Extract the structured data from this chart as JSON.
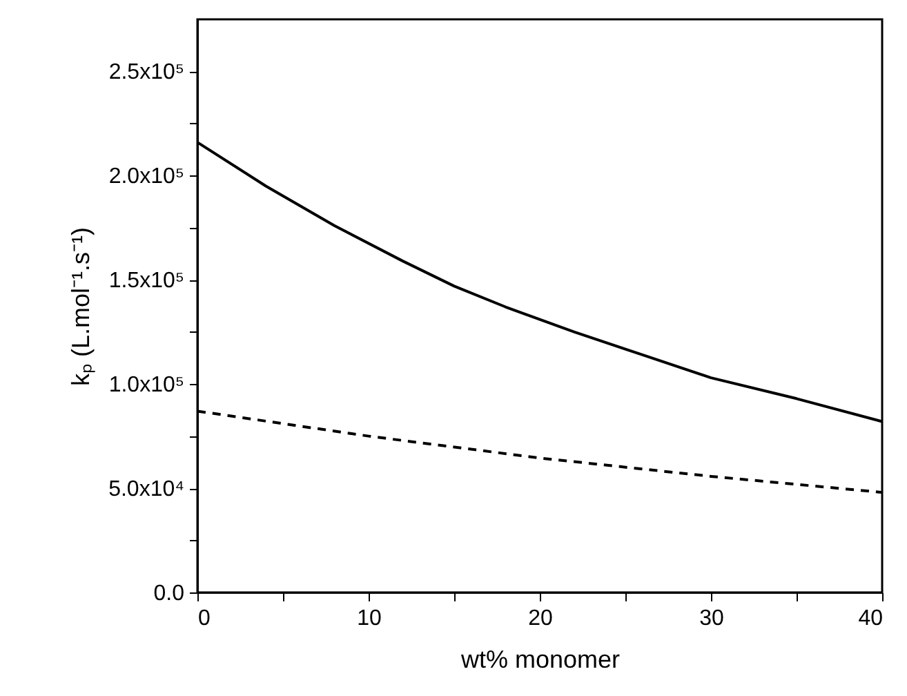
{
  "chart_data": {
    "type": "line",
    "xlabel": "wt% monomer",
    "ylabel": "kₚ (L.mol⁻¹.s⁻¹)",
    "xlim": [
      0,
      40
    ],
    "xticks": [
      0,
      {
        "value": 5,
        "label": null
      },
      10,
      {
        "value": 15,
        "label": null
      },
      20,
      {
        "value": 25,
        "label": null
      },
      30,
      {
        "value": 35,
        "label": null
      },
      40
    ],
    "ylim": [
      0,
      275000
    ],
    "yticks": [
      {
        "value": 0,
        "label": "0.0"
      },
      {
        "value": 25000,
        "label": null
      },
      {
        "value": 50000,
        "label": "5.0x10⁴"
      },
      {
        "value": 75000,
        "label": null
      },
      {
        "value": 100000,
        "label": "1.0x10⁵"
      },
      {
        "value": 125000,
        "label": null
      },
      {
        "value": 150000,
        "label": "1.5x10⁵"
      },
      {
        "value": 175000,
        "label": null
      },
      {
        "value": 200000,
        "label": "2.0x10⁵"
      },
      {
        "value": 225000,
        "label": null
      },
      {
        "value": 250000,
        "label": "2.5x10⁵"
      }
    ],
    "grid": false,
    "marker": "none",
    "series": [
      {
        "color": "#000000",
        "line_style": "solid",
        "x": [
          0,
          4,
          8,
          12,
          15,
          18,
          22,
          26,
          30,
          35,
          40
        ],
        "values": [
          216000,
          195000,
          176000,
          159000,
          147000,
          137000,
          125000,
          114000,
          103000,
          93000,
          82000
        ]
      },
      {
        "color": "#000000",
        "line_style": "dashed",
        "x": [
          0,
          10,
          20,
          30,
          40
        ],
        "values": [
          87000,
          75000,
          64500,
          55700,
          48000
        ]
      }
    ]
  }
}
